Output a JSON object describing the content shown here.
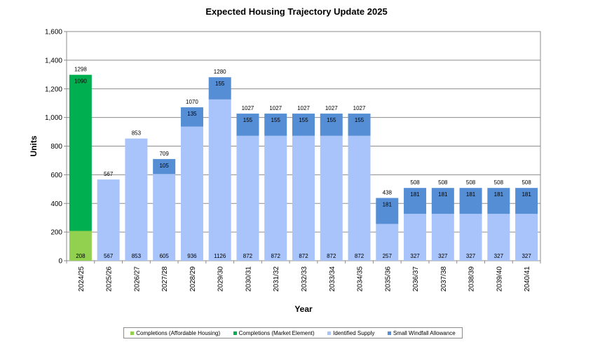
{
  "chart_data": {
    "type": "bar",
    "stacked": true,
    "title": "Expected Housing Trajectory Update 2025",
    "xlabel": "Year",
    "ylabel": "Units",
    "ylim": [
      0,
      1600
    ],
    "yticks": [
      0,
      200,
      400,
      600,
      800,
      1000,
      1200,
      1400,
      1600
    ],
    "ytick_labels": [
      "0",
      "200",
      "400",
      "600",
      "800",
      "1,000",
      "1,200",
      "1,400",
      "1,600"
    ],
    "grid": true,
    "legend_position": "bottom",
    "categories": [
      "2024/25",
      "2025/26",
      "2026/27",
      "2027/28",
      "2028/29",
      "2029/30",
      "2030/31",
      "2031/32",
      "2032/33",
      "2033/34",
      "2034/35",
      "2035/36",
      "2036/37",
      "2037/38",
      "2038/39",
      "2039/40",
      "2040/41"
    ],
    "series": [
      {
        "name": "Completions (Affordable Housing)",
        "color": "#92d050",
        "values": [
          208,
          0,
          0,
          0,
          0,
          0,
          0,
          0,
          0,
          0,
          0,
          0,
          0,
          0,
          0,
          0,
          0
        ],
        "labels": [
          "208",
          "",
          "",
          "",
          "",
          "",
          "",
          "",
          "",
          "",
          "",
          "",
          "",
          "",
          "",
          "",
          ""
        ]
      },
      {
        "name": "Completions (Market Element)",
        "color": "#00b050",
        "values": [
          1090,
          0,
          0,
          0,
          0,
          0,
          0,
          0,
          0,
          0,
          0,
          0,
          0,
          0,
          0,
          0,
          0
        ],
        "labels": [
          "1090",
          "",
          "",
          "",
          "",
          "",
          "",
          "",
          "",
          "",
          "",
          "",
          "",
          "",
          "",
          "",
          ""
        ]
      },
      {
        "name": "Identified Supply",
        "color": "#a9c4fa",
        "values": [
          0,
          567,
          853,
          605,
          936,
          1126,
          872,
          872,
          872,
          872,
          872,
          257,
          327,
          327,
          327,
          327,
          327
        ],
        "labels": [
          "",
          "567",
          "853",
          "605",
          "936",
          "1126",
          "872",
          "872",
          "872",
          "872",
          "872",
          "257",
          "327",
          "327",
          "327",
          "327",
          "327"
        ]
      },
      {
        "name": "Small Windfall Allowance",
        "color": "#558ed5",
        "values": [
          0,
          0,
          0,
          105,
          135,
          155,
          155,
          155,
          155,
          155,
          155,
          181,
          181,
          181,
          181,
          181,
          181
        ],
        "labels": [
          "",
          "",
          "",
          "105",
          "135",
          "155",
          "155",
          "155",
          "155",
          "155",
          "155",
          "181",
          "181",
          "181",
          "181",
          "181",
          "181"
        ]
      }
    ],
    "totals": [
      "1298",
      "567",
      "853",
      "709",
      "1070",
      "1280",
      "1027",
      "1027",
      "1027",
      "1027",
      "1027",
      "438",
      "508",
      "508",
      "508",
      "508",
      "508"
    ]
  }
}
